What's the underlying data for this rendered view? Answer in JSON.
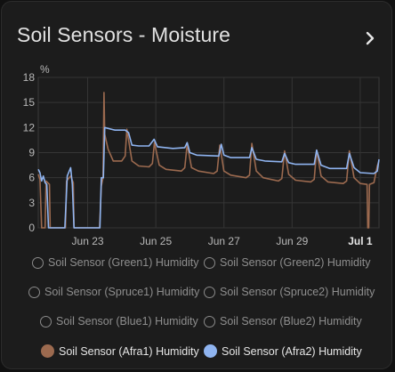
{
  "card": {
    "title": "Soil Sensors - Moisture"
  },
  "chart_data": {
    "type": "line",
    "ylabel": "%",
    "ylim": [
      0,
      18
    ],
    "y_ticks": [
      "0",
      "3",
      "6",
      "9",
      "12",
      "15",
      "18"
    ],
    "x_ticks": [
      {
        "label": "Jun 23",
        "day": 23,
        "bold": false
      },
      {
        "label": "Jun 25",
        "day": 25,
        "bold": false
      },
      {
        "label": "Jun 27",
        "day": 27,
        "bold": false
      },
      {
        "label": "Jun 29",
        "day": 29,
        "bold": false
      },
      {
        "label": "Jul 1",
        "day": 31,
        "bold": true
      }
    ],
    "xlim": [
      21.55,
      31.55
    ],
    "grid": true,
    "series": [
      {
        "name": "Soil Sensor (Afra1) Humidity",
        "color": "#9c6a4f",
        "points": [
          [
            21.55,
            6.4
          ],
          [
            21.6,
            5.8
          ],
          [
            21.65,
            0
          ],
          [
            21.75,
            0
          ],
          [
            21.78,
            5.6
          ],
          [
            21.88,
            5.2
          ],
          [
            21.9,
            0
          ],
          [
            22.35,
            0
          ],
          [
            22.38,
            5.6
          ],
          [
            22.5,
            6.2
          ],
          [
            22.58,
            5.4
          ],
          [
            22.6,
            0
          ],
          [
            23.35,
            0
          ],
          [
            23.4,
            5
          ],
          [
            23.45,
            6
          ],
          [
            23.48,
            16.2
          ],
          [
            23.5,
            11.2
          ],
          [
            23.6,
            9.4
          ],
          [
            23.75,
            8
          ],
          [
            24.0,
            8
          ],
          [
            24.1,
            8.6
          ],
          [
            24.15,
            11.8
          ],
          [
            24.3,
            8
          ],
          [
            24.5,
            7.4
          ],
          [
            24.8,
            7.3
          ],
          [
            24.9,
            7.7
          ],
          [
            24.96,
            10.2
          ],
          [
            25.1,
            7.5
          ],
          [
            25.3,
            7
          ],
          [
            25.75,
            6.8
          ],
          [
            25.85,
            7.2
          ],
          [
            25.92,
            10
          ],
          [
            26.05,
            7.2
          ],
          [
            26.25,
            6.8
          ],
          [
            26.7,
            6.5
          ],
          [
            26.8,
            6.8
          ],
          [
            26.88,
            9.9
          ],
          [
            27.0,
            6.8
          ],
          [
            27.2,
            6.3
          ],
          [
            27.65,
            6
          ],
          [
            27.75,
            6.3
          ],
          [
            27.82,
            10.1
          ],
          [
            27.95,
            6.8
          ],
          [
            28.15,
            6.0
          ],
          [
            28.6,
            5.6
          ],
          [
            28.7,
            5.9
          ],
          [
            28.78,
            9.2
          ],
          [
            28.9,
            6.4
          ],
          [
            29.1,
            5.7
          ],
          [
            29.55,
            5.5
          ],
          [
            29.65,
            5.8
          ],
          [
            29.72,
            9.3
          ],
          [
            29.85,
            6.2
          ],
          [
            30.05,
            5.5
          ],
          [
            30.5,
            5.3
          ],
          [
            30.6,
            5.6
          ],
          [
            30.68,
            9.2
          ],
          [
            30.82,
            6
          ],
          [
            31.0,
            5.3
          ],
          [
            31.2,
            5.2
          ],
          [
            31.22,
            0
          ],
          [
            31.25,
            0
          ],
          [
            31.27,
            5.2
          ],
          [
            31.4,
            5.4
          ],
          [
            31.5,
            7.4
          ],
          [
            31.55,
            8
          ]
        ]
      },
      {
        "name": "Soil Sensor (Afra2) Humidity",
        "color": "#8fb4f0",
        "points": [
          [
            21.55,
            7
          ],
          [
            21.6,
            6.6
          ],
          [
            21.65,
            5.6
          ],
          [
            21.7,
            6.2
          ],
          [
            21.75,
            5.4
          ],
          [
            21.8,
            5.2
          ],
          [
            21.85,
            0
          ],
          [
            22.33,
            0
          ],
          [
            22.4,
            6.2
          ],
          [
            22.5,
            7.2
          ],
          [
            22.55,
            5.2
          ],
          [
            22.6,
            0
          ],
          [
            23.36,
            0
          ],
          [
            23.4,
            6
          ],
          [
            23.46,
            6
          ],
          [
            23.5,
            12
          ],
          [
            23.8,
            11.7
          ],
          [
            24.1,
            11.7
          ],
          [
            24.2,
            11.4
          ],
          [
            24.3,
            9.9
          ],
          [
            24.5,
            9.8
          ],
          [
            24.8,
            9.8
          ],
          [
            24.95,
            10.6
          ],
          [
            25.05,
            9.7
          ],
          [
            25.5,
            9.5
          ],
          [
            25.85,
            9.6
          ],
          [
            25.92,
            10.2
          ],
          [
            26.0,
            9
          ],
          [
            26.2,
            8.7
          ],
          [
            26.85,
            8.6
          ],
          [
            26.92,
            10
          ],
          [
            27.0,
            8.7
          ],
          [
            27.2,
            8.4
          ],
          [
            27.75,
            8.4
          ],
          [
            27.82,
            9.6
          ],
          [
            27.95,
            8.2
          ],
          [
            28.2,
            8
          ],
          [
            28.7,
            7.9
          ],
          [
            28.78,
            8.9
          ],
          [
            28.9,
            7.8
          ],
          [
            29.1,
            7.6
          ],
          [
            29.65,
            7.6
          ],
          [
            29.72,
            9.3
          ],
          [
            29.85,
            7.5
          ],
          [
            30.1,
            7.1
          ],
          [
            30.6,
            7.1
          ],
          [
            30.68,
            8.9
          ],
          [
            30.82,
            7.2
          ],
          [
            31.0,
            6.6
          ],
          [
            31.4,
            6.5
          ],
          [
            31.5,
            6.8
          ],
          [
            31.55,
            8.2
          ]
        ]
      }
    ]
  },
  "legend": {
    "items": [
      {
        "label": "Soil Sensor (Green1) Humidity",
        "active": false,
        "color": "#8a8a8a"
      },
      {
        "label": "Soil Sensor (Green2) Humidity",
        "active": false,
        "color": "#8a8a8a"
      },
      {
        "label": "Soil Sensor (Spruce1) Humidity",
        "active": false,
        "color": "#8a8a8a"
      },
      {
        "label": "Soil Sensor (Spruce2) Humidity",
        "active": false,
        "color": "#8a8a8a"
      },
      {
        "label": "Soil Sensor (Blue1) Humidity",
        "active": false,
        "color": "#8a8a8a"
      },
      {
        "label": "Soil Sensor (Blue2) Humidity",
        "active": false,
        "color": "#8a8a8a"
      },
      {
        "label": "Soil Sensor (Afra1) Humidity",
        "active": true,
        "color": "#9c6a4f"
      },
      {
        "label": "Soil Sensor (Afra2) Humidity",
        "active": true,
        "color": "#8fb4f0"
      }
    ]
  }
}
